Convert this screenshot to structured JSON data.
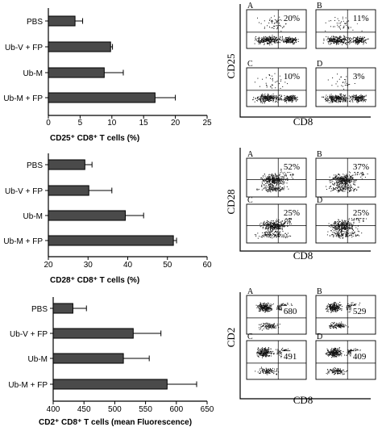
{
  "chart_data": [
    {
      "type": "bar",
      "orientation": "horizontal",
      "categories": [
        "PBS",
        "Ub-V + FP",
        "Ub-M",
        "Ub-M + FP"
      ],
      "values": [
        4.2,
        9.8,
        8.8,
        16.8
      ],
      "errors": [
        1.2,
        0.3,
        3.0,
        3.2
      ],
      "xlabel": "CD25⁺ CD8⁺ T cells (%)",
      "xlim": [
        0,
        25
      ],
      "xticks": [
        0,
        5,
        10,
        15,
        20,
        25
      ]
    },
    {
      "type": "bar",
      "orientation": "horizontal",
      "categories": [
        "PBS",
        "Ub-V + FP",
        "Ub-M",
        "Ub-M + FP"
      ],
      "values": [
        29.2,
        30.2,
        39.4,
        51.5
      ],
      "errors": [
        1.8,
        5.8,
        4.6,
        0.8
      ],
      "xlabel": "CD28⁺ CD8⁺ T cells (%)",
      "xlim": [
        20,
        60
      ],
      "xticks": [
        20,
        30,
        40,
        50,
        60
      ]
    },
    {
      "type": "bar",
      "orientation": "horizontal",
      "categories": [
        "PBS",
        "Ub-V + FP",
        "Ub-M",
        "Ub-M + FP"
      ],
      "values": [
        432,
        530,
        514,
        585
      ],
      "errors": [
        22,
        45,
        42,
        48
      ],
      "xlabel": "CD2⁺ CD8⁺ T cells (mean Fluorescence)",
      "xlim": [
        400,
        650
      ],
      "xticks": [
        400,
        450,
        500,
        550,
        600,
        650
      ]
    },
    {
      "type": "scatter",
      "ylabel": "CD25",
      "xlabel": "CD8",
      "panels": [
        {
          "letter": "A",
          "value": "20%"
        },
        {
          "letter": "B",
          "value": "11%"
        },
        {
          "letter": "C",
          "value": "10%"
        },
        {
          "letter": "D",
          "value": "3%"
        }
      ]
    },
    {
      "type": "scatter",
      "ylabel": "CD28",
      "xlabel": "CD8",
      "panels": [
        {
          "letter": "A",
          "value": "52%"
        },
        {
          "letter": "B",
          "value": "37%"
        },
        {
          "letter": "C",
          "value": "25%"
        },
        {
          "letter": "D",
          "value": "25%"
        }
      ]
    },
    {
      "type": "scatter",
      "ylabel": "CD2",
      "xlabel": "CD8",
      "panels": [
        {
          "letter": "A",
          "value": "680"
        },
        {
          "letter": "B",
          "value": "529"
        },
        {
          "letter": "C",
          "value": "491"
        },
        {
          "letter": "D",
          "value": "409"
        }
      ]
    }
  ]
}
